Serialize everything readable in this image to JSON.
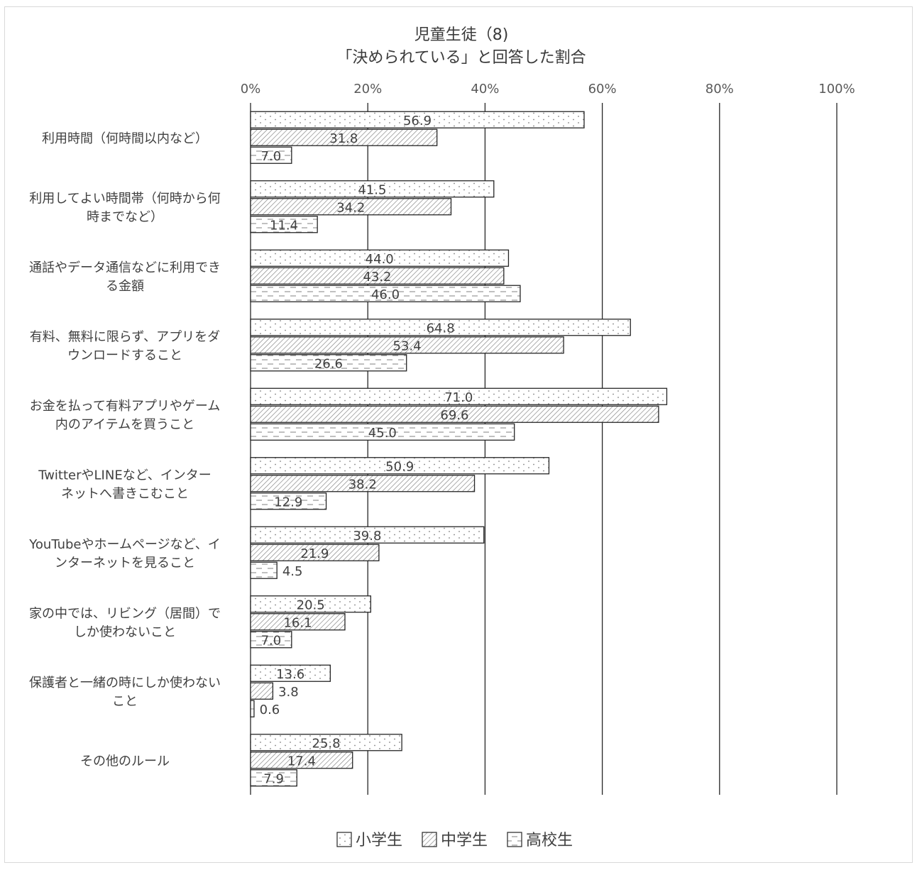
{
  "chart_data": {
    "type": "bar",
    "orientation": "horizontal",
    "title": "児童生徒（8)",
    "subtitle": "「決められている」と回答した割合",
    "x_ticks": [
      "0%",
      "20%",
      "40%",
      "60%",
      "80%",
      "100%"
    ],
    "xlim": [
      0,
      100
    ],
    "grid": true,
    "legend_position": "bottom",
    "categories": [
      [
        "利用時間（何時間以内など）"
      ],
      [
        "利用してよい時間帯（何時から何",
        "時までなど）"
      ],
      [
        "通話やデータ通信などに利用でき",
        "る金額"
      ],
      [
        "有料、無料に限らず、アプリをダ",
        "ウンロードすること"
      ],
      [
        "お金を払って有料アプリやゲーム",
        "内のアイテムを買うこと"
      ],
      [
        "TwitterやLINEなど、インター",
        "ネットへ書きこむこと"
      ],
      [
        "YouTubeやホームページなど、イ",
        "ンターネットを見ること"
      ],
      [
        "家の中では、リビング（居間）で",
        "しか使わないこと"
      ],
      [
        "保護者と一緒の時にしか使わない",
        "こと"
      ],
      [
        "その他のルール"
      ]
    ],
    "series": [
      {
        "name": "小学生",
        "pattern": "dots",
        "values": [
          56.9,
          41.5,
          44.0,
          64.8,
          71.0,
          50.9,
          39.8,
          20.5,
          13.6,
          25.8
        ],
        "labels": [
          "56.9",
          "41.5",
          "44.0",
          "64.8",
          "71.0",
          "50.9",
          "39.8",
          "20.5",
          "13.6",
          "25.8"
        ]
      },
      {
        "name": "中学生",
        "pattern": "diagonal",
        "values": [
          31.8,
          34.2,
          43.2,
          53.4,
          69.6,
          38.2,
          21.9,
          16.1,
          3.8,
          17.4
        ],
        "labels": [
          "31.8",
          "34.2",
          "43.2",
          "53.4",
          "69.6",
          "38.2",
          "21.9",
          "16.1",
          "3.8",
          "17.4"
        ]
      },
      {
        "name": "高校生",
        "pattern": "dashes",
        "values": [
          7.0,
          11.4,
          46.0,
          26.6,
          45.0,
          12.9,
          4.5,
          7.0,
          0.6,
          7.9
        ],
        "labels": [
          "7.0",
          "11.4",
          "46.0",
          "26.6",
          "45.0",
          "12.9",
          "4.5",
          "7.0",
          "0.6",
          "7.9"
        ]
      }
    ]
  },
  "colors": {
    "bar_stroke": "#262626",
    "bar_fill": "#ffffff",
    "pattern": "#808080",
    "grid": "#262626",
    "frame": "#d9d9d9"
  }
}
